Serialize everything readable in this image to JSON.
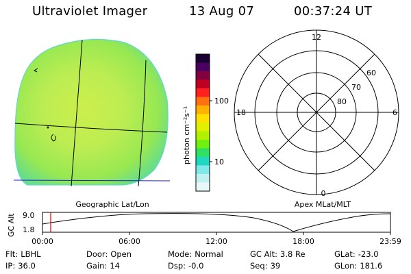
{
  "header": {
    "instrument": "Ultraviolet Imager",
    "date": "13 Aug 07",
    "time": "00:37:24 UT"
  },
  "colorbar": {
    "unit_label": "photon cm⁻²s⁻¹",
    "ticks": [
      "100",
      "10"
    ],
    "colors": [
      "#1a0030",
      "#4b0060",
      "#800040",
      "#c00020",
      "#ff2020",
      "#ff7010",
      "#ffb000",
      "#ffe000",
      "#e0f000",
      "#b0f000",
      "#70f010",
      "#30e060",
      "#20d8c0",
      "#80e8e8",
      "#c0f0f0",
      "#e8f8f8"
    ]
  },
  "left_panel": {
    "caption": "Geographic Lat/Lon"
  },
  "right_panel": {
    "caption": "Apex MLat/MLT",
    "mlt_labels": {
      "top": "12",
      "right": "6",
      "bottom": "0",
      "left": "18"
    },
    "mlat_labels": [
      "60",
      "70",
      "80"
    ]
  },
  "timeline": {
    "axis_title": "GC Alt",
    "y_ticks": [
      "9.0",
      "1.8"
    ],
    "x_ticks": [
      "00:00",
      "06:00",
      "12:00",
      "18:00",
      "23:59"
    ],
    "marker_color": "#cc0000"
  },
  "status": {
    "flt": {
      "label": "Flt:",
      "value": "LBHL"
    },
    "ip": {
      "label": "IP:",
      "value": "36.0"
    },
    "door": {
      "label": "Door:",
      "value": "Open"
    },
    "gain": {
      "label": "Gain:",
      "value": "14"
    },
    "mode": {
      "label": "Mode:",
      "value": "Normal"
    },
    "dsp": {
      "label": "Dsp:",
      "value": "-0.0"
    },
    "gc_alt": {
      "label": "GC Alt:",
      "value": "3.8 Re"
    },
    "seq": {
      "label": "Seq:",
      "value": "39"
    },
    "glat": {
      "label": "GLat:",
      "value": "-23.0"
    },
    "glon": {
      "label": "GLon:",
      "value": "181.6"
    }
  }
}
